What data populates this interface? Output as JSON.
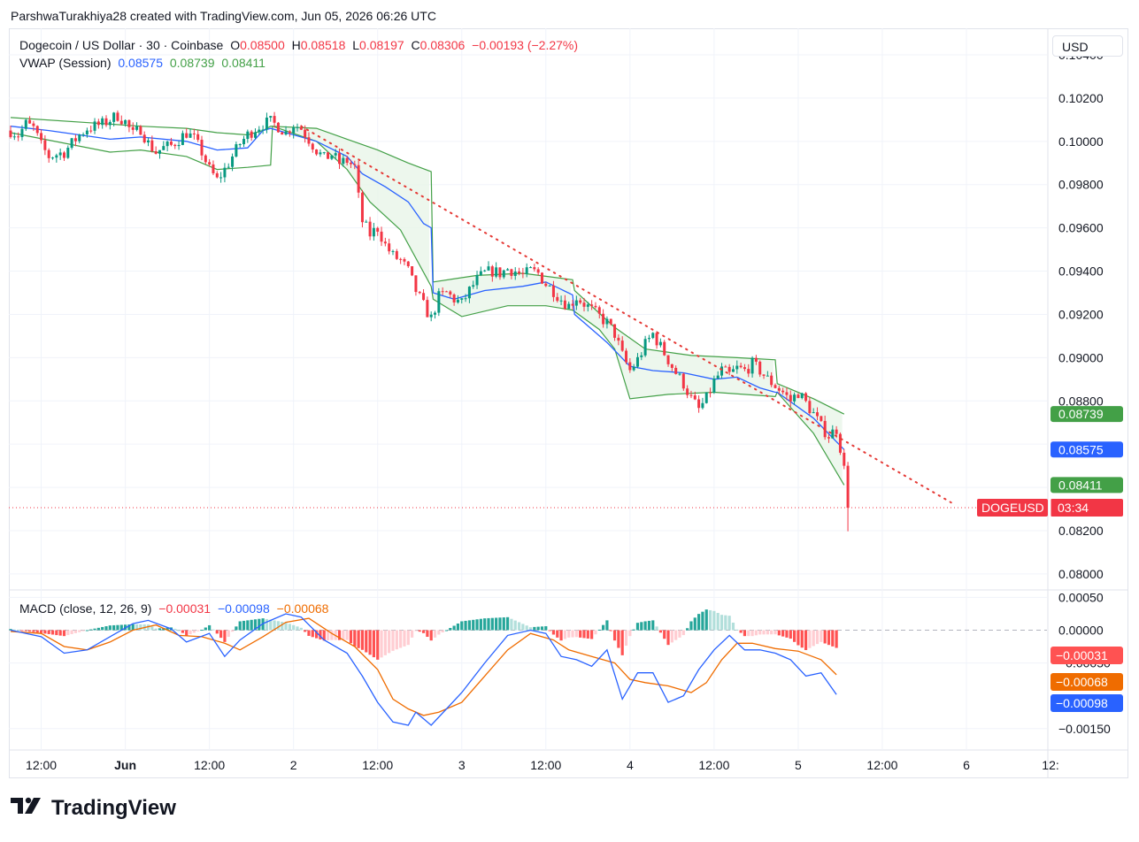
{
  "header": {
    "attribution": "ParshwaTurakhiya28 created with TradingView.com, Jun 05, 2026 06:26 UTC"
  },
  "legend": {
    "symbol": "Dogecoin / US Dollar · 30 · Coinbase",
    "open_label": "O",
    "open": "0.08500",
    "high_label": "H",
    "high": "0.08518",
    "low_label": "L",
    "low": "0.08197",
    "close_label": "C",
    "close": "0.08306",
    "change": "−0.00193 (−2.27%)",
    "vwap_label": "VWAP (Session)",
    "vwap_values": [
      "0.08575",
      "0.08739",
      "0.08411"
    ],
    "macd_label": "MACD (close, 12, 26, 9)",
    "macd_values": [
      "−0.00031",
      "−0.00098",
      "−0.00068"
    ]
  },
  "currency_button": "USD",
  "colors": {
    "up": "#089981",
    "down": "#f23645",
    "vwap": "#2962ff",
    "band": "#43a047",
    "band_fill": "#e8f5e9",
    "signal": "#ef6c00",
    "hist_up_strong": "#26a69a",
    "hist_up_weak": "#b2dfdb",
    "hist_down_strong": "#ff5252",
    "hist_down_weak": "#ffcdd2",
    "trendline": "#e53935"
  },
  "chart_data": [
    {
      "type": "candlestick",
      "title": "Dogecoin / US Dollar · 30 · Coinbase",
      "ylabel": "USD",
      "ylim": [
        0.0793,
        0.1049
      ],
      "y_ticks": [
        "0.10400",
        "0.10200",
        "0.10000",
        "0.09800",
        "0.09600",
        "0.09400",
        "0.09200",
        "0.09000",
        "0.08800",
        "0.08200",
        "0.08000"
      ],
      "x_ticks": [
        "12:00",
        "Jun",
        "12:00",
        "2",
        "12:00",
        "3",
        "12:00",
        "4",
        "12:00",
        "5",
        "12:00",
        "6",
        "12:"
      ],
      "price_path": [
        [
          0,
          0.1005
        ],
        [
          2,
          0.1003
        ],
        [
          4,
          0.1008
        ],
        [
          6,
          0.1006
        ],
        [
          8,
          0.0998
        ],
        [
          10,
          0.0993
        ],
        [
          12,
          0.0994
        ],
        [
          14,
          0.0995
        ],
        [
          16,
          0.0999
        ],
        [
          18,
          0.1003
        ],
        [
          20,
          0.1006
        ],
        [
          24,
          0.1008
        ],
        [
          28,
          0.1012
        ],
        [
          30,
          0.1009
        ],
        [
          32,
          0.1003
        ],
        [
          34,
          0.1006
        ],
        [
          36,
          0.0999
        ],
        [
          38,
          0.0995
        ],
        [
          40,
          0.0997
        ],
        [
          42,
          0.0998
        ],
        [
          44,
          0.1001
        ],
        [
          46,
          0.1004
        ],
        [
          48,
          0.1001
        ],
        [
          50,
          0.0995
        ],
        [
          52,
          0.0987
        ],
        [
          54,
          0.0982
        ],
        [
          56,
          0.0987
        ],
        [
          58,
          0.0993
        ],
        [
          60,
          0.0999
        ],
        [
          62,
          0.1003
        ],
        [
          64,
          0.1006
        ],
        [
          66,
          0.1008
        ],
        [
          68,
          0.1009
        ],
        [
          70,
          0.1007
        ],
        [
          72,
          0.1004
        ],
        [
          74,
          0.1008
        ],
        [
          76,
          0.1006
        ],
        [
          78,
          0.1001
        ],
        [
          80,
          0.0996
        ],
        [
          82,
          0.0992
        ],
        [
          84,
          0.0994
        ],
        [
          86,
          0.099
        ],
        [
          88,
          0.0991
        ],
        [
          90,
          0.0988
        ],
        [
          91,
          0.0974
        ],
        [
          92,
          0.0963
        ],
        [
          94,
          0.0957
        ],
        [
          96,
          0.096
        ],
        [
          98,
          0.0952
        ],
        [
          100,
          0.0947
        ],
        [
          102,
          0.0945
        ],
        [
          104,
          0.094
        ],
        [
          106,
          0.0931
        ],
        [
          108,
          0.0924
        ],
        [
          110,
          0.0918
        ],
        [
          112,
          0.0928
        ],
        [
          114,
          0.093
        ],
        [
          116,
          0.0927
        ],
        [
          118,
          0.0925
        ],
        [
          120,
          0.0931
        ],
        [
          122,
          0.0936
        ],
        [
          124,
          0.0939
        ],
        [
          126,
          0.094
        ],
        [
          128,
          0.0939
        ],
        [
          130,
          0.0941
        ],
        [
          132,
          0.094
        ],
        [
          134,
          0.0938
        ],
        [
          136,
          0.094
        ],
        [
          138,
          0.0939
        ],
        [
          140,
          0.0934
        ],
        [
          142,
          0.0931
        ],
        [
          144,
          0.0927
        ],
        [
          146,
          0.0924
        ],
        [
          148,
          0.0928
        ],
        [
          150,
          0.0925
        ],
        [
          152,
          0.0922
        ],
        [
          154,
          0.0919
        ],
        [
          156,
          0.0916
        ],
        [
          158,
          0.0911
        ],
        [
          160,
          0.0901
        ],
        [
          162,
          0.0894
        ],
        [
          164,
          0.0899
        ],
        [
          166,
          0.0906
        ],
        [
          168,
          0.0911
        ],
        [
          170,
          0.0905
        ],
        [
          172,
          0.0899
        ],
        [
          174,
          0.0893
        ],
        [
          176,
          0.0888
        ],
        [
          178,
          0.0881
        ],
        [
          180,
          0.0876
        ],
        [
          182,
          0.0881
        ],
        [
          184,
          0.0889
        ],
        [
          186,
          0.0894
        ],
        [
          188,
          0.0892
        ],
        [
          190,
          0.0895
        ],
        [
          192,
          0.0894
        ],
        [
          194,
          0.0897
        ],
        [
          196,
          0.0894
        ],
        [
          198,
          0.089
        ],
        [
          200,
          0.0887
        ],
        [
          202,
          0.0884
        ],
        [
          204,
          0.088
        ],
        [
          206,
          0.0884
        ],
        [
          208,
          0.0879
        ],
        [
          210,
          0.0874
        ],
        [
          212,
          0.0868
        ],
        [
          214,
          0.0864
        ],
        [
          216,
          0.0867
        ],
        [
          218,
          0.085
        ]
      ],
      "last_candle": {
        "open": 0.085,
        "high": 0.08518,
        "low": 0.08197,
        "close": 0.08306
      },
      "vwap": [
        [
          0,
          0.1007
        ],
        [
          10,
          0.1005
        ],
        [
          26,
          0.1001
        ],
        [
          34,
          0.1002
        ],
        [
          46,
          0.1
        ],
        [
          54,
          0.0996
        ],
        [
          62,
          0.0997
        ],
        [
          66,
          0.1005
        ],
        [
          68,
          0.1006
        ],
        [
          72,
          0.1004
        ],
        [
          80,
          0.1
        ],
        [
          88,
          0.0993
        ],
        [
          92,
          0.0985
        ],
        [
          98,
          0.0979
        ],
        [
          104,
          0.0972
        ],
        [
          108,
          0.0962
        ],
        [
          110,
          0.096
        ],
        [
          110.5,
          0.093
        ],
        [
          116,
          0.0927
        ],
        [
          124,
          0.0931
        ],
        [
          134,
          0.0933
        ],
        [
          140,
          0.0935
        ],
        [
          147,
          0.0929
        ],
        [
          147.5,
          0.092
        ],
        [
          156,
          0.0907
        ],
        [
          162,
          0.0896
        ],
        [
          168,
          0.0894
        ],
        [
          176,
          0.0893
        ],
        [
          184,
          0.089
        ],
        [
          190,
          0.0891
        ],
        [
          196,
          0.0886
        ],
        [
          200,
          0.0884
        ],
        [
          200.5,
          0.0884
        ],
        [
          210,
          0.0872
        ],
        [
          218,
          0.08575
        ]
      ],
      "band_upper": [
        [
          0,
          0.1011
        ],
        [
          26,
          0.1008
        ],
        [
          34,
          0.1007
        ],
        [
          46,
          0.1006
        ],
        [
          54,
          0.1004
        ],
        [
          62,
          0.1003
        ],
        [
          66,
          0.1005
        ],
        [
          68,
          0.1007
        ],
        [
          80,
          0.1006
        ],
        [
          88,
          0.1001
        ],
        [
          96,
          0.0996
        ],
        [
          104,
          0.099
        ],
        [
          110,
          0.0986
        ],
        [
          110.5,
          0.0935
        ],
        [
          122,
          0.0938
        ],
        [
          134,
          0.0939
        ],
        [
          147,
          0.0936
        ],
        [
          147.5,
          0.0931
        ],
        [
          158,
          0.0914
        ],
        [
          166,
          0.0904
        ],
        [
          178,
          0.0901
        ],
        [
          190,
          0.09
        ],
        [
          200,
          0.0899
        ],
        [
          200.5,
          0.0888
        ],
        [
          210,
          0.0881
        ],
        [
          218,
          0.08739
        ]
      ],
      "band_lower": [
        [
          0,
          0.1004
        ],
        [
          26,
          0.0995
        ],
        [
          34,
          0.0996
        ],
        [
          46,
          0.0993
        ],
        [
          54,
          0.0987
        ],
        [
          62,
          0.0988
        ],
        [
          68,
          0.0989
        ],
        [
          68.5,
          0.1007
        ],
        [
          80,
          0.1
        ],
        [
          88,
          0.0987
        ],
        [
          94,
          0.0972
        ],
        [
          102,
          0.0959
        ],
        [
          110,
          0.0933
        ],
        [
          110.5,
          0.0927
        ],
        [
          118,
          0.0919
        ],
        [
          130,
          0.0924
        ],
        [
          140,
          0.0924
        ],
        [
          147,
          0.0922
        ],
        [
          154,
          0.0913
        ],
        [
          158,
          0.0904
        ],
        [
          162,
          0.0881
        ],
        [
          172,
          0.0883
        ],
        [
          184,
          0.0884
        ],
        [
          200,
          0.0882
        ],
        [
          200.5,
          0.0884
        ],
        [
          210,
          0.0865
        ],
        [
          218,
          0.08411
        ]
      ],
      "trendline": {
        "from": [
          76,
          0.1007
        ],
        "to": [
          246,
          0.0833
        ]
      },
      "price_line": 0.08306,
      "right_labels": [
        {
          "text": "0.08739",
          "value": 0.08739,
          "color": "#43a047"
        },
        {
          "text": "0.08575",
          "value": 0.08575,
          "color": "#2962ff"
        },
        {
          "text": "0.08411",
          "value": 0.08411,
          "color": "#43a047"
        }
      ],
      "symbol_tag": {
        "symbol": "DOGEUSD",
        "countdown": "03:34"
      }
    },
    {
      "type": "line",
      "title": "MACD (close, 12, 26, 9)",
      "ylim": [
        -0.0018,
        0.0006
      ],
      "y_ticks": [
        "0.00050",
        "0.00000",
        "−0.00050",
        "−0.00150"
      ],
      "series": [
        {
          "name": "MACD",
          "values": [
            [
              0,
              0.0
            ],
            [
              8,
              -0.0001
            ],
            [
              14,
              -0.00035
            ],
            [
              20,
              -0.0003
            ],
            [
              26,
              -0.0001
            ],
            [
              32,
              0.0001
            ],
            [
              36,
              0.00015
            ],
            [
              42,
              2e-05
            ],
            [
              46,
              -0.00018
            ],
            [
              52,
              -5e-05
            ],
            [
              56,
              -0.0004
            ],
            [
              60,
              -0.00015
            ],
            [
              66,
              0.0001
            ],
            [
              72,
              0.00025
            ],
            [
              76,
              0.0002
            ],
            [
              82,
              -0.00015
            ],
            [
              88,
              -0.00035
            ],
            [
              92,
              -0.0007
            ],
            [
              96,
              -0.0011
            ],
            [
              100,
              -0.0014
            ],
            [
              104,
              -0.00145
            ],
            [
              106,
              -0.00125
            ],
            [
              110,
              -0.00145
            ],
            [
              114,
              -0.0012
            ],
            [
              118,
              -0.00095
            ],
            [
              124,
              -0.0005
            ],
            [
              130,
              -8e-05
            ],
            [
              136,
              0.0
            ],
            [
              140,
              -5e-05
            ],
            [
              144,
              -0.0004
            ],
            [
              148,
              -0.00045
            ],
            [
              152,
              -0.00055
            ],
            [
              156,
              -0.0003
            ],
            [
              160,
              -0.00105
            ],
            [
              164,
              -0.00065
            ],
            [
              168,
              -0.00065
            ],
            [
              172,
              -0.0011
            ],
            [
              176,
              -0.001
            ],
            [
              180,
              -0.0006
            ],
            [
              184,
              -0.0003
            ],
            [
              188,
              -8e-05
            ],
            [
              192,
              -0.0003
            ],
            [
              196,
              -0.0003
            ],
            [
              200,
              -0.00035
            ],
            [
              204,
              -0.00045
            ],
            [
              208,
              -0.0007
            ],
            [
              212,
              -0.00065
            ],
            [
              216,
              -0.00098
            ]
          ]
        },
        {
          "name": "Signal",
          "values": [
            [
              0,
              -2e-05
            ],
            [
              8,
              -5e-05
            ],
            [
              14,
              -0.00025
            ],
            [
              20,
              -0.0003
            ],
            [
              26,
              -0.00018
            ],
            [
              32,
              0.0
            ],
            [
              38,
              8e-05
            ],
            [
              44,
              -8e-05
            ],
            [
              50,
              -0.0001
            ],
            [
              56,
              -0.0002
            ],
            [
              60,
              -0.0003
            ],
            [
              66,
              -0.0001
            ],
            [
              72,
              0.00012
            ],
            [
              78,
              0.00018
            ],
            [
              84,
              -5e-05
            ],
            [
              90,
              -0.00025
            ],
            [
              96,
              -0.0006
            ],
            [
              100,
              -0.00105
            ],
            [
              104,
              -0.0012
            ],
            [
              108,
              -0.0013
            ],
            [
              112,
              -0.00125
            ],
            [
              118,
              -0.0011
            ],
            [
              124,
              -0.0007
            ],
            [
              130,
              -0.0003
            ],
            [
              136,
              -5e-05
            ],
            [
              142,
              -0.00015
            ],
            [
              146,
              -0.0003
            ],
            [
              152,
              -0.0004
            ],
            [
              158,
              -0.0005
            ],
            [
              162,
              -0.00075
            ],
            [
              166,
              -0.0008
            ],
            [
              172,
              -0.00085
            ],
            [
              178,
              -0.00095
            ],
            [
              182,
              -0.0008
            ],
            [
              186,
              -0.00045
            ],
            [
              190,
              -0.0002
            ],
            [
              194,
              -0.0002
            ],
            [
              200,
              -0.00028
            ],
            [
              206,
              -0.00032
            ],
            [
              212,
              -0.00045
            ],
            [
              216,
              -0.00068
            ]
          ]
        }
      ],
      "histogram_last": -0.00031,
      "right_labels": [
        {
          "text": "−0.00031",
          "value": -0.00031,
          "color": "#ff5252"
        },
        {
          "text": "−0.00068",
          "value": -0.00068,
          "color": "#ef6c00"
        },
        {
          "text": "−0.00098",
          "value": -0.00098,
          "color": "#2962ff"
        }
      ]
    }
  ],
  "branding": "TradingView"
}
